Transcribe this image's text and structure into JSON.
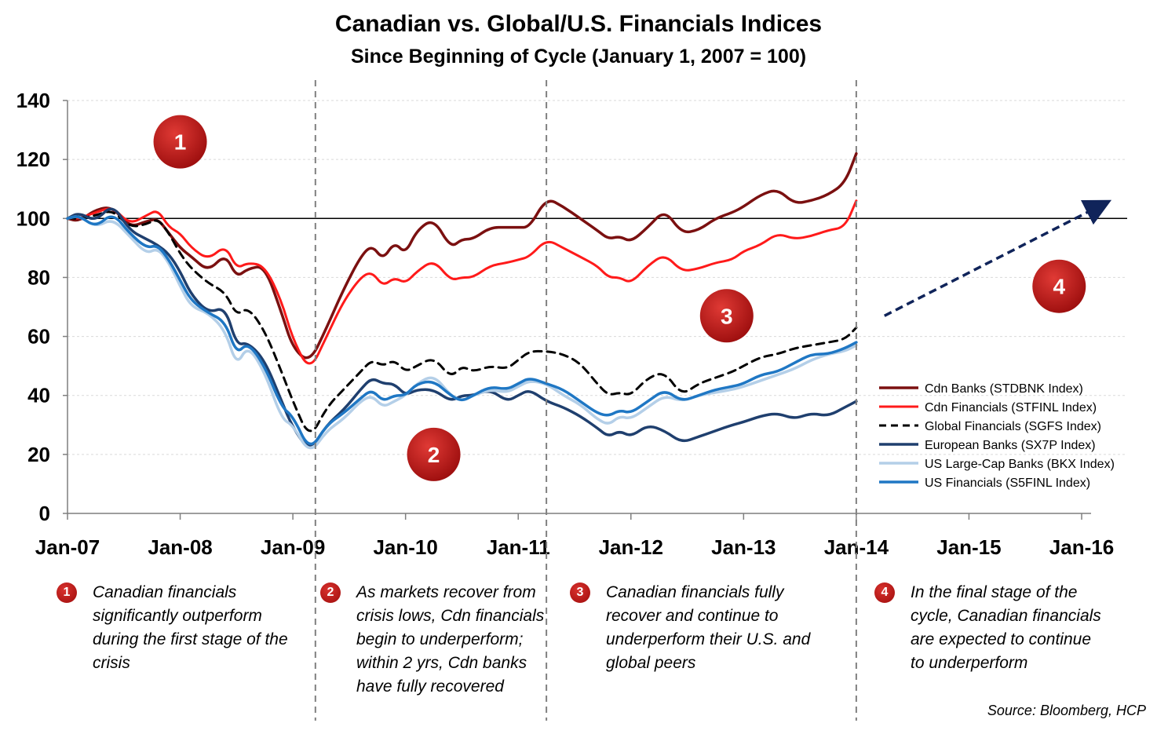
{
  "title": "Canadian vs. Global/U.S. Financials Indices",
  "subtitle": "Since Beginning of Cycle (January 1, 2007 = 100)",
  "source": "Source: Bloomberg, HCP",
  "stage_markers": [
    "1",
    "2",
    "3",
    "4"
  ],
  "notes": [
    {
      "badge": "1",
      "text": "Canadian financials significantly outperform during the first stage of the crisis"
    },
    {
      "badge": "2",
      "text": "As markets recover from crisis lows, Cdn financials begin to underperform; within 2 yrs, Cdn banks have fully recovered"
    },
    {
      "badge": "3",
      "text": "Canadian financials fully recover and continue to underperform their U.S. and global peers"
    },
    {
      "badge": "4",
      "text": "In the final stage of the cycle, Canadian financials are expected to continue to underperform"
    }
  ],
  "colors": {
    "cdn_banks": "#7b1010",
    "cdn_financials": "#ff1a1a",
    "global_financials": "#000000",
    "european_banks": "#1f3f6e",
    "us_largecap_banks": "#b4cfe8",
    "us_financials": "#1f77c4",
    "marker": "#b81414",
    "arrow": "#10245a"
  },
  "chart_data": {
    "type": "line",
    "title": "Canadian vs. Global/U.S. Financials Indices",
    "subtitle": "Since Beginning of Cycle (January 1, 2007 = 100)",
    "xlabel": "",
    "ylabel": "",
    "x_ticks": [
      "Jan-07",
      "Jan-08",
      "Jan-09",
      "Jan-10",
      "Jan-11",
      "Jan-12",
      "Jan-13",
      "Jan-14",
      "Jan-15",
      "Jan-16"
    ],
    "xlim": [
      2007.0,
      2016.0
    ],
    "ylim": [
      0,
      140
    ],
    "y_ticks": [
      0,
      20,
      40,
      60,
      80,
      100,
      120,
      140
    ],
    "reference_line": 100,
    "phase_dividers": [
      2009.2,
      2011.25,
      2014.0
    ],
    "legend_position": "right",
    "grid": true,
    "series": [
      {
        "name": "Cdn Banks (STDBNK Index)",
        "x": [
          2007.0,
          2007.1,
          2007.25,
          2007.4,
          2007.55,
          2007.7,
          2007.8,
          2007.9,
          2008.0,
          2008.1,
          2008.25,
          2008.4,
          2008.5,
          2008.6,
          2008.75,
          2008.9,
          2009.0,
          2009.15,
          2009.3,
          2009.45,
          2009.6,
          2009.7,
          2009.8,
          2009.9,
          2010.0,
          2010.1,
          2010.25,
          2010.4,
          2010.5,
          2010.6,
          2010.75,
          2010.9,
          2011.0,
          2011.1,
          2011.25,
          2011.4,
          2011.55,
          2011.7,
          2011.8,
          2011.9,
          2012.0,
          2012.15,
          2012.3,
          2012.45,
          2012.6,
          2012.75,
          2012.9,
          2013.0,
          2013.15,
          2013.3,
          2013.45,
          2013.6,
          2013.75,
          2013.9,
          2014.0
        ],
        "y": [
          100,
          99,
          103,
          104,
          97,
          99,
          100,
          95,
          90,
          87,
          82,
          88,
          80,
          83,
          84,
          68,
          56,
          51,
          63,
          76,
          87,
          91,
          86,
          92,
          88,
          96,
          100,
          90,
          93,
          93,
          97,
          97,
          97,
          97,
          107,
          104,
          100,
          96,
          93,
          94,
          92,
          97,
          103,
          95,
          96,
          100,
          102,
          104,
          108,
          110,
          105,
          106,
          108,
          112,
          122
        ]
      },
      {
        "name": "Cdn Financials (STFINL Index)",
        "x": [
          2007.0,
          2007.1,
          2007.25,
          2007.4,
          2007.55,
          2007.7,
          2007.8,
          2007.9,
          2008.0,
          2008.1,
          2008.25,
          2008.4,
          2008.5,
          2008.6,
          2008.75,
          2008.9,
          2009.0,
          2009.15,
          2009.3,
          2009.45,
          2009.6,
          2009.7,
          2009.8,
          2009.9,
          2010.0,
          2010.1,
          2010.25,
          2010.4,
          2010.5,
          2010.6,
          2010.75,
          2010.9,
          2011.0,
          2011.1,
          2011.25,
          2011.4,
          2011.55,
          2011.7,
          2011.8,
          2011.9,
          2012.0,
          2012.15,
          2012.3,
          2012.45,
          2012.6,
          2012.75,
          2012.9,
          2013.0,
          2013.15,
          2013.3,
          2013.45,
          2013.6,
          2013.75,
          2013.9,
          2014.0
        ],
        "y": [
          100,
          100,
          102,
          104,
          98,
          101,
          103,
          97,
          95,
          90,
          86,
          91,
          83,
          85,
          84,
          72,
          59,
          48,
          60,
          72,
          80,
          82,
          77,
          80,
          78,
          82,
          86,
          79,
          80,
          80,
          84,
          85,
          86,
          87,
          93,
          90,
          87,
          84,
          80,
          80,
          78,
          84,
          88,
          82,
          83,
          85,
          86,
          89,
          91,
          95,
          93,
          94,
          96,
          97,
          106
        ]
      },
      {
        "name": "Global Financials (SGFS Index)",
        "x": [
          2007.0,
          2007.1,
          2007.25,
          2007.4,
          2007.55,
          2007.7,
          2007.8,
          2007.9,
          2008.0,
          2008.1,
          2008.25,
          2008.4,
          2008.5,
          2008.6,
          2008.75,
          2008.9,
          2009.0,
          2009.15,
          2009.3,
          2009.45,
          2009.6,
          2009.7,
          2009.8,
          2009.9,
          2010.0,
          2010.1,
          2010.25,
          2010.4,
          2010.5,
          2010.6,
          2010.75,
          2010.9,
          2011.0,
          2011.1,
          2011.25,
          2011.4,
          2011.55,
          2011.7,
          2011.8,
          2011.9,
          2012.0,
          2012.15,
          2012.3,
          2012.45,
          2012.6,
          2012.75,
          2012.9,
          2013.0,
          2013.15,
          2013.3,
          2013.45,
          2013.6,
          2013.75,
          2013.9,
          2014.0
        ],
        "y": [
          100,
          100,
          101,
          103,
          97,
          98,
          100,
          95,
          88,
          83,
          78,
          75,
          67,
          70,
          62,
          48,
          38,
          25,
          36,
          42,
          48,
          52,
          50,
          52,
          48,
          50,
          53,
          46,
          50,
          48,
          50,
          49,
          52,
          55,
          55,
          54,
          51,
          44,
          40,
          41,
          40,
          46,
          48,
          40,
          44,
          46,
          48,
          50,
          53,
          54,
          56,
          57,
          58,
          59,
          63
        ]
      },
      {
        "name": "European Banks (SX7P Index)",
        "x": [
          2007.0,
          2007.1,
          2007.25,
          2007.4,
          2007.55,
          2007.7,
          2007.8,
          2007.9,
          2008.0,
          2008.1,
          2008.25,
          2008.4,
          2008.5,
          2008.6,
          2008.75,
          2008.9,
          2009.0,
          2009.15,
          2009.3,
          2009.45,
          2009.6,
          2009.7,
          2009.8,
          2009.9,
          2010.0,
          2010.1,
          2010.25,
          2010.4,
          2010.5,
          2010.6,
          2010.75,
          2010.9,
          2011.0,
          2011.1,
          2011.25,
          2011.4,
          2011.55,
          2011.7,
          2011.8,
          2011.9,
          2012.0,
          2012.15,
          2012.3,
          2012.45,
          2012.6,
          2012.75,
          2012.9,
          2013.0,
          2013.15,
          2013.3,
          2013.45,
          2013.6,
          2013.75,
          2013.9,
          2014.0
        ],
        "y": [
          100,
          102,
          99,
          105,
          96,
          93,
          91,
          88,
          82,
          74,
          68,
          70,
          57,
          58,
          52,
          38,
          29,
          21,
          30,
          35,
          42,
          46,
          44,
          44,
          40,
          42,
          42,
          38,
          40,
          40,
          42,
          38,
          40,
          42,
          38,
          36,
          33,
          29,
          26,
          28,
          26,
          30,
          28,
          24,
          26,
          28,
          30,
          31,
          33,
          34,
          32,
          34,
          33,
          36,
          38
        ]
      },
      {
        "name": "US Large-Cap Banks (BKX Index)",
        "x": [
          2007.0,
          2007.1,
          2007.25,
          2007.4,
          2007.55,
          2007.7,
          2007.8,
          2007.9,
          2008.0,
          2008.1,
          2008.25,
          2008.4,
          2008.5,
          2008.6,
          2008.75,
          2008.9,
          2009.0,
          2009.15,
          2009.3,
          2009.45,
          2009.6,
          2009.7,
          2009.8,
          2009.9,
          2010.0,
          2010.1,
          2010.25,
          2010.4,
          2010.5,
          2010.6,
          2010.75,
          2010.9,
          2011.0,
          2011.1,
          2011.25,
          2011.4,
          2011.55,
          2011.7,
          2011.8,
          2011.9,
          2012.0,
          2012.15,
          2012.3,
          2012.45,
          2012.6,
          2012.75,
          2012.9,
          2013.0,
          2013.15,
          2013.3,
          2013.45,
          2013.6,
          2013.75,
          2013.9,
          2014.0
        ],
        "y": [
          100,
          101,
          97,
          100,
          94,
          88,
          90,
          85,
          77,
          70,
          68,
          62,
          50,
          57,
          48,
          32,
          30,
          20,
          28,
          32,
          38,
          40,
          36,
          38,
          40,
          44,
          47,
          40,
          38,
          40,
          42,
          41,
          43,
          45,
          44,
          40,
          37,
          32,
          30,
          33,
          32,
          36,
          40,
          38,
          40,
          41,
          42,
          43,
          45,
          47,
          49,
          52,
          54,
          55,
          57
        ]
      },
      {
        "name": "US Financials (S5FINL Index)",
        "x": [
          2007.0,
          2007.1,
          2007.25,
          2007.4,
          2007.55,
          2007.7,
          2007.8,
          2007.9,
          2008.0,
          2008.1,
          2008.25,
          2008.4,
          2008.5,
          2008.6,
          2008.75,
          2008.9,
          2009.0,
          2009.15,
          2009.3,
          2009.45,
          2009.6,
          2009.7,
          2009.8,
          2009.9,
          2010.0,
          2010.1,
          2010.25,
          2010.4,
          2010.5,
          2010.6,
          2010.75,
          2010.9,
          2011.0,
          2011.1,
          2011.25,
          2011.4,
          2011.55,
          2011.7,
          2011.8,
          2011.9,
          2012.0,
          2012.15,
          2012.3,
          2012.45,
          2012.6,
          2012.75,
          2012.9,
          2013.0,
          2013.15,
          2013.3,
          2013.45,
          2013.6,
          2013.75,
          2013.9,
          2014.0
        ],
        "y": [
          100,
          101,
          97,
          102,
          95,
          90,
          91,
          86,
          79,
          72,
          68,
          65,
          54,
          58,
          50,
          36,
          33,
          21,
          30,
          34,
          39,
          42,
          38,
          40,
          40,
          44,
          45,
          40,
          38,
          40,
          43,
          42,
          44,
          46,
          44,
          42,
          38,
          34,
          33,
          35,
          34,
          38,
          42,
          38,
          40,
          42,
          43,
          44,
          47,
          48,
          51,
          54,
          54,
          56,
          58
        ]
      }
    ],
    "forecast_arrow": {
      "from": [
        2014.25,
        67
      ],
      "to": [
        2016.2,
        105
      ]
    },
    "stage_marker_positions": [
      {
        "label": "1",
        "x": 2008.0,
        "y": 126
      },
      {
        "label": "2",
        "x": 2010.25,
        "y": 20
      },
      {
        "label": "3",
        "x": 2012.85,
        "y": 67
      },
      {
        "label": "4",
        "x": 2015.8,
        "y": 77
      }
    ]
  }
}
